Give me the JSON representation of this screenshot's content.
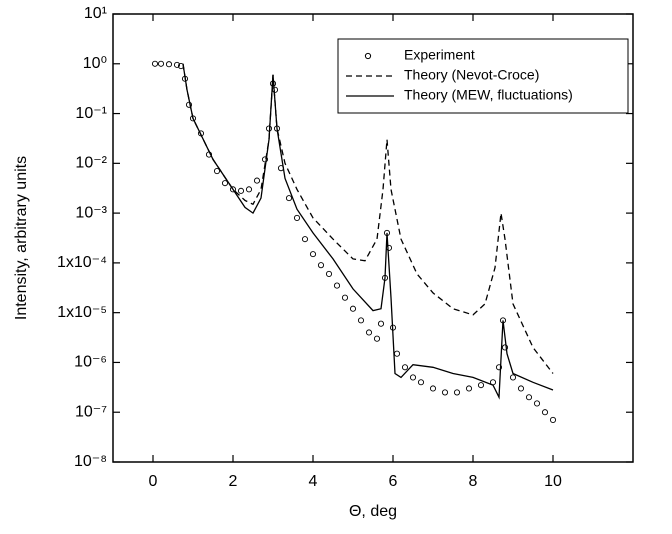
{
  "chart_data": {
    "type": "line",
    "x_label": "Θ, deg",
    "y_label": "Intensity, arbitrary units",
    "xlim": [
      -1,
      12
    ],
    "xticks": [
      0,
      2,
      4,
      6,
      8,
      10
    ],
    "ylim": [
      1e-08,
      10
    ],
    "ylog": true,
    "yticks": [
      {
        "value": 10,
        "label": "10¹"
      },
      {
        "value": 1,
        "label": "10⁰"
      },
      {
        "value": 0.1,
        "label": "10⁻¹"
      },
      {
        "value": 0.01,
        "label": "10⁻²"
      },
      {
        "value": 0.001,
        "label": "10⁻³"
      },
      {
        "value": 0.0001,
        "label": "1x10⁻⁴"
      },
      {
        "value": 1e-05,
        "label": "1x10⁻⁵"
      },
      {
        "value": 1e-06,
        "label": "10⁻⁶"
      },
      {
        "value": 1e-07,
        "label": "10⁻⁷"
      },
      {
        "value": 1e-08,
        "label": "10⁻⁸"
      }
    ],
    "legend": "upper right",
    "series": [
      {
        "name": "Experiment",
        "style": "markers",
        "color": "#000000",
        "x": [
          0.05,
          0.2,
          0.4,
          0.6,
          0.7,
          0.8,
          0.9,
          1.0,
          1.2,
          1.4,
          1.6,
          1.8,
          2.0,
          2.2,
          2.4,
          2.6,
          2.8,
          2.9,
          3.0,
          3.05,
          3.1,
          3.2,
          3.4,
          3.6,
          3.8,
          4.0,
          4.2,
          4.4,
          4.6,
          4.8,
          5.0,
          5.2,
          5.4,
          5.6,
          5.7,
          5.8,
          5.85,
          5.9,
          6.0,
          6.1,
          6.3,
          6.5,
          6.7,
          7.0,
          7.3,
          7.6,
          7.9,
          8.2,
          8.5,
          8.65,
          8.75,
          8.8,
          9.0,
          9.2,
          9.4,
          9.6,
          9.8,
          10.0
        ],
        "values": [
          1.0,
          1.0,
          0.98,
          0.95,
          0.9,
          0.5,
          0.15,
          0.08,
          0.04,
          0.015,
          0.007,
          0.004,
          0.003,
          0.0028,
          0.003,
          0.0045,
          0.012,
          0.05,
          0.4,
          0.3,
          0.05,
          0.008,
          0.002,
          0.0008,
          0.0003,
          0.00015,
          9e-05,
          6e-05,
          3.5e-05,
          2e-05,
          1.2e-05,
          7e-06,
          4e-06,
          3e-06,
          6e-06,
          5e-05,
          0.0004,
          0.0002,
          5e-06,
          1.5e-06,
          8e-07,
          5e-07,
          4e-07,
          3e-07,
          2.5e-07,
          2.5e-07,
          3e-07,
          3.5e-07,
          4e-07,
          8e-07,
          7e-06,
          2e-06,
          5e-07,
          3e-07,
          2e-07,
          1.5e-07,
          1e-07,
          7e-08
        ]
      },
      {
        "name": "Theory (Nevot-Croce)",
        "style": "dashed",
        "color": "#000000",
        "x": [
          0.75,
          0.85,
          1.0,
          1.5,
          2.0,
          2.3,
          2.5,
          2.7,
          2.9,
          3.0,
          3.1,
          3.3,
          3.6,
          4.0,
          4.5,
          5.0,
          5.3,
          5.6,
          5.75,
          5.85,
          5.95,
          6.2,
          6.6,
          7.0,
          7.5,
          8.0,
          8.3,
          8.55,
          8.7,
          8.8,
          9.0,
          9.5,
          10.0
        ],
        "values": [
          1,
          0.3,
          0.08,
          0.012,
          0.003,
          0.0018,
          0.0015,
          0.003,
          0.03,
          0.6,
          0.05,
          0.01,
          0.003,
          0.0008,
          0.0003,
          0.00012,
          0.00011,
          0.0003,
          0.003,
          0.03,
          0.003,
          0.0003,
          6e-05,
          2.5e-05,
          1.2e-05,
          9e-06,
          1.5e-05,
          8e-05,
          0.001,
          0.0003,
          1.5e-05,
          2e-06,
          6e-07
        ]
      },
      {
        "name": "Theory (MEW, fluctuations)",
        "style": "solid",
        "color": "#000000",
        "x": [
          0.75,
          0.85,
          1.0,
          1.5,
          2.0,
          2.3,
          2.5,
          2.7,
          2.9,
          3.0,
          3.1,
          3.3,
          3.6,
          4.0,
          4.5,
          5.0,
          5.5,
          5.7,
          5.8,
          5.85,
          5.95,
          6.05,
          6.2,
          6.5,
          7.0,
          7.5,
          8.0,
          8.5,
          8.65,
          8.75,
          8.85,
          9.0,
          9.5,
          10.0
        ],
        "values": [
          1,
          0.3,
          0.08,
          0.012,
          0.003,
          0.0013,
          0.001,
          0.002,
          0.03,
          0.6,
          0.05,
          0.005,
          0.0012,
          0.0004,
          0.00012,
          3e-05,
          1.1e-05,
          1.2e-05,
          5e-05,
          0.0004,
          2e-05,
          6e-07,
          5e-07,
          9e-07,
          8e-07,
          6e-07,
          5e-07,
          3.5e-07,
          2e-07,
          7e-06,
          1.5e-06,
          6e-07,
          4e-07,
          2.8e-07
        ]
      }
    ]
  }
}
